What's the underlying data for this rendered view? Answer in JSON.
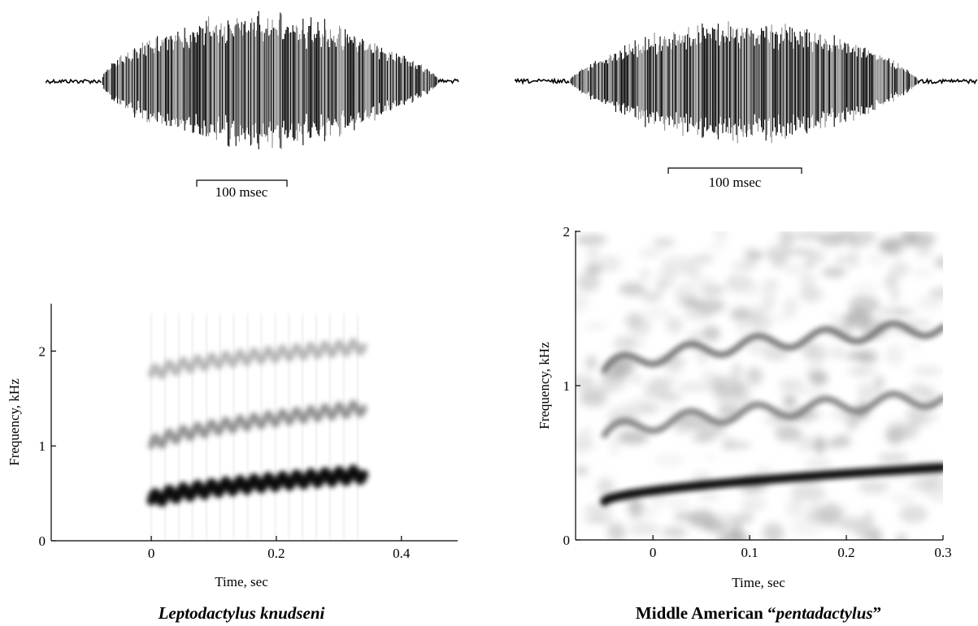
{
  "figure": {
    "left": {
      "oscillogram_scale_label": "100 msec",
      "caption": "Leptodactylus knudseni"
    },
    "right": {
      "oscillogram_scale_label": "100 msec",
      "caption_prefix": "Middle American “",
      "caption_species": "pentadactylus",
      "caption_suffix": "”"
    }
  },
  "chart_data": [
    {
      "type": "oscillogram",
      "panel": "left-top",
      "scale_bar": "100 msec"
    },
    {
      "type": "oscillogram",
      "panel": "right-top",
      "scale_bar": "100 msec"
    },
    {
      "type": "spectrogram",
      "panel": "left-bottom",
      "title": "Leptodactylus knudseni",
      "xlabel": "Time, sec",
      "ylabel": "Frequency, kHz",
      "xlim": [
        -0.16,
        0.49
      ],
      "ylim": [
        0,
        2.5
      ],
      "xticks": [
        "0",
        "0.2",
        "0.4"
      ],
      "yticks": [
        "0",
        "1",
        "2"
      ],
      "call_start": 0,
      "call_end": 0.34,
      "bands": [
        {
          "name": "fundamental",
          "start_khz": 0.42,
          "end_khz": 0.7,
          "modulation_cycles": 15,
          "intensity": 1.0
        },
        {
          "name": "harmonic 2",
          "start_khz": 1.0,
          "end_khz": 1.4,
          "modulation_cycles": 15,
          "intensity": 0.45
        },
        {
          "name": "harmonic 3",
          "start_khz": 1.75,
          "end_khz": 2.05,
          "modulation_cycles": 15,
          "intensity": 0.3
        }
      ]
    },
    {
      "type": "spectrogram",
      "panel": "right-bottom",
      "title": "Middle American “pentadactylus”",
      "xlabel": "Time, sec",
      "ylabel": "Frequency, kHz",
      "xlim": [
        -0.08,
        0.3
      ],
      "ylim": [
        0,
        2
      ],
      "xticks": [
        "0",
        "0.1",
        "0.2",
        "0.3"
      ],
      "yticks": [
        "0",
        "1",
        "2"
      ],
      "call_start": -0.05,
      "call_end": 0.3,
      "bands": [
        {
          "name": "fundamental",
          "start_khz": 0.25,
          "end_khz": 0.47,
          "modulation_cycles": 0,
          "intensity": 1.0
        },
        {
          "name": "harmonic 2",
          "start_khz": 0.68,
          "end_khz": 0.92,
          "modulation_cycles": 5,
          "intensity": 0.5
        },
        {
          "name": "harmonic 3",
          "start_khz": 1.1,
          "end_khz": 1.38,
          "modulation_cycles": 5,
          "intensity": 0.55
        }
      ]
    }
  ]
}
